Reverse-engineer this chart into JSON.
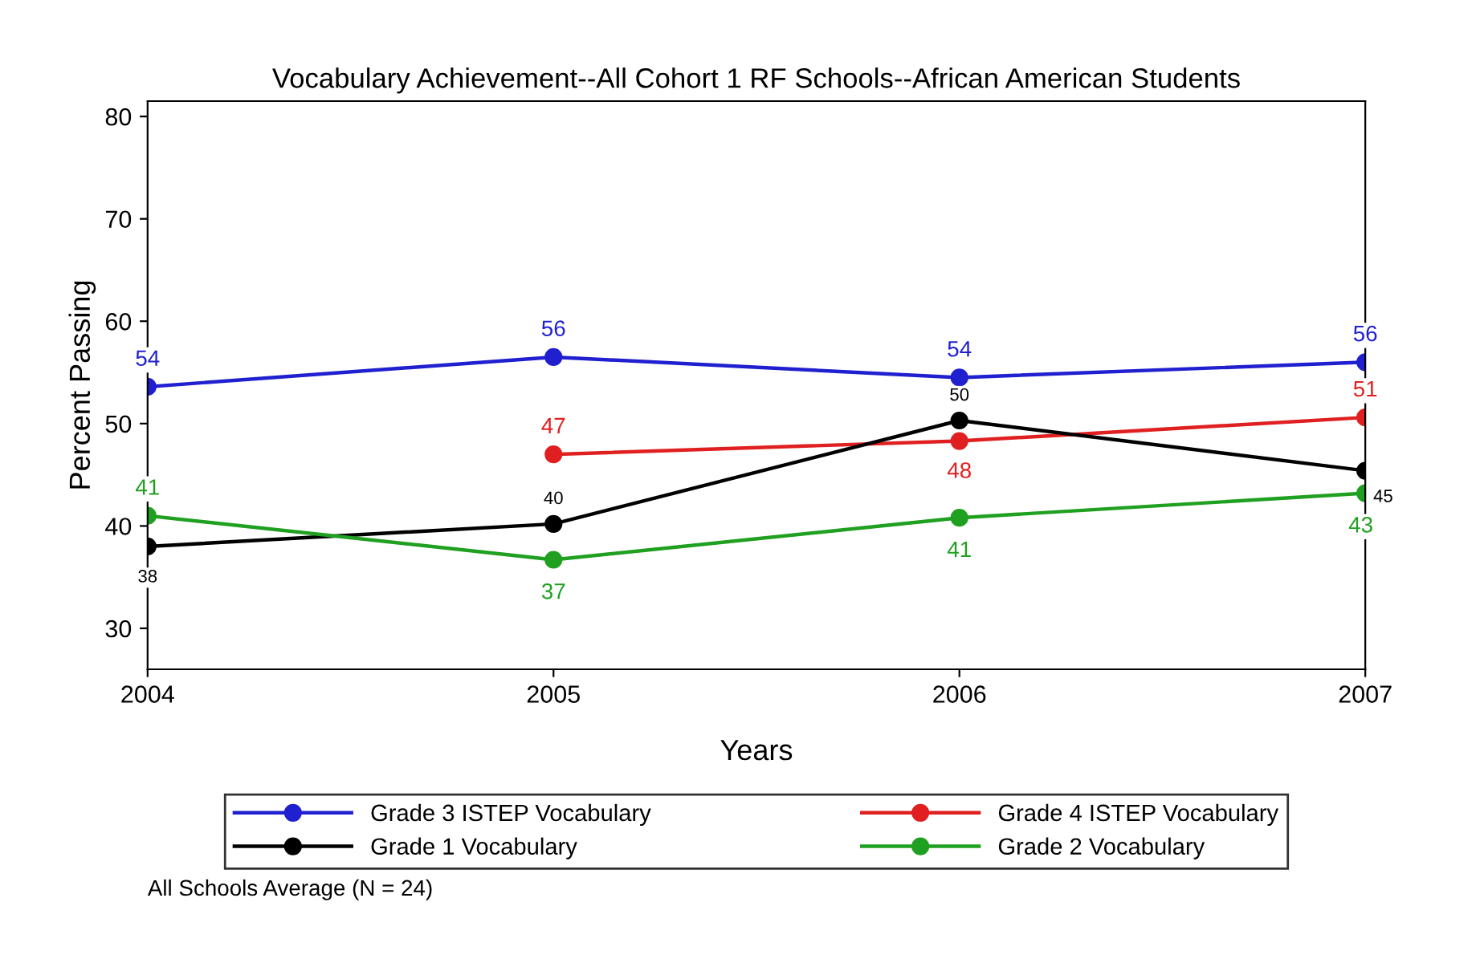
{
  "chart_data": {
    "type": "line",
    "title": "Vocabulary Achievement--All Cohort 1 RF Schools--African American Students",
    "xlabel": "Years",
    "ylabel": "Percent Passing",
    "x": [
      2004,
      2005,
      2006,
      2007
    ],
    "xlim": [
      2004,
      2007
    ],
    "xticks": [
      2004,
      2005,
      2006,
      2007
    ],
    "ylim": [
      26,
      81.5
    ],
    "yticks": [
      30,
      40,
      50,
      60,
      70,
      80
    ],
    "series": [
      {
        "name": "Grade 3 ISTEP Vocabulary",
        "color": "#2020d0",
        "values": [
          53.6,
          56.5,
          54.5,
          56
        ],
        "value_labels": [
          "54",
          "56",
          "54",
          "56"
        ]
      },
      {
        "name": "Grade 4 ISTEP Vocabulary",
        "color": "#e02020",
        "values": [
          null,
          47,
          48.3,
          50.6
        ],
        "value_labels": [
          null,
          "47",
          "48",
          "51"
        ]
      },
      {
        "name": "Grade 1 Vocabulary",
        "color": "#000000",
        "values": [
          38,
          40.2,
          50.3,
          45.4
        ],
        "value_labels": [
          "38",
          "40",
          "50",
          "45"
        ]
      },
      {
        "name": "Grade 2 Vocabulary",
        "color": "#20a020",
        "values": [
          41,
          36.7,
          40.8,
          43.2
        ],
        "value_labels": [
          "41",
          "37",
          "41",
          "43"
        ]
      }
    ],
    "marker": "circle",
    "line_style": "solid",
    "grid": false,
    "legend": "bottom",
    "annotations": [
      "All Schools Average (N = 24)"
    ]
  }
}
